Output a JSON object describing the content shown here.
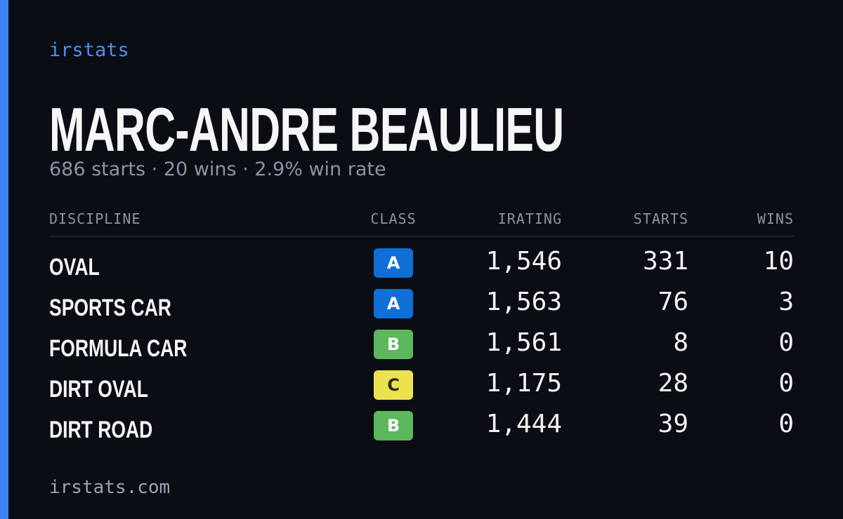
{
  "header": {
    "brand": "irstats",
    "name": "MARC-ANDRE BEAULIEU",
    "summary": "686 starts · 20 wins · 2.9% win rate"
  },
  "table": {
    "columns": [
      "DISCIPLINE",
      "CLASS",
      "IRATING",
      "STARTS",
      "WINS"
    ],
    "rows": [
      [
        "OVAL",
        "A",
        "1,546",
        "331",
        "10"
      ],
      [
        "SPORTS CAR",
        "A",
        "1,563",
        "76",
        "3"
      ],
      [
        "FORMULA CAR",
        "B",
        "1,561",
        "8",
        "0"
      ],
      [
        "DIRT OVAL",
        "C",
        "1,175",
        "28",
        "0"
      ],
      [
        "DIRT ROAD",
        "B",
        "1,444",
        "39",
        "0"
      ]
    ],
    "class_colors": {
      "A": "#0f6fd6",
      "B": "#5cb85c",
      "C": "#ece24f"
    }
  },
  "footer": {
    "site": "irstats.com"
  }
}
